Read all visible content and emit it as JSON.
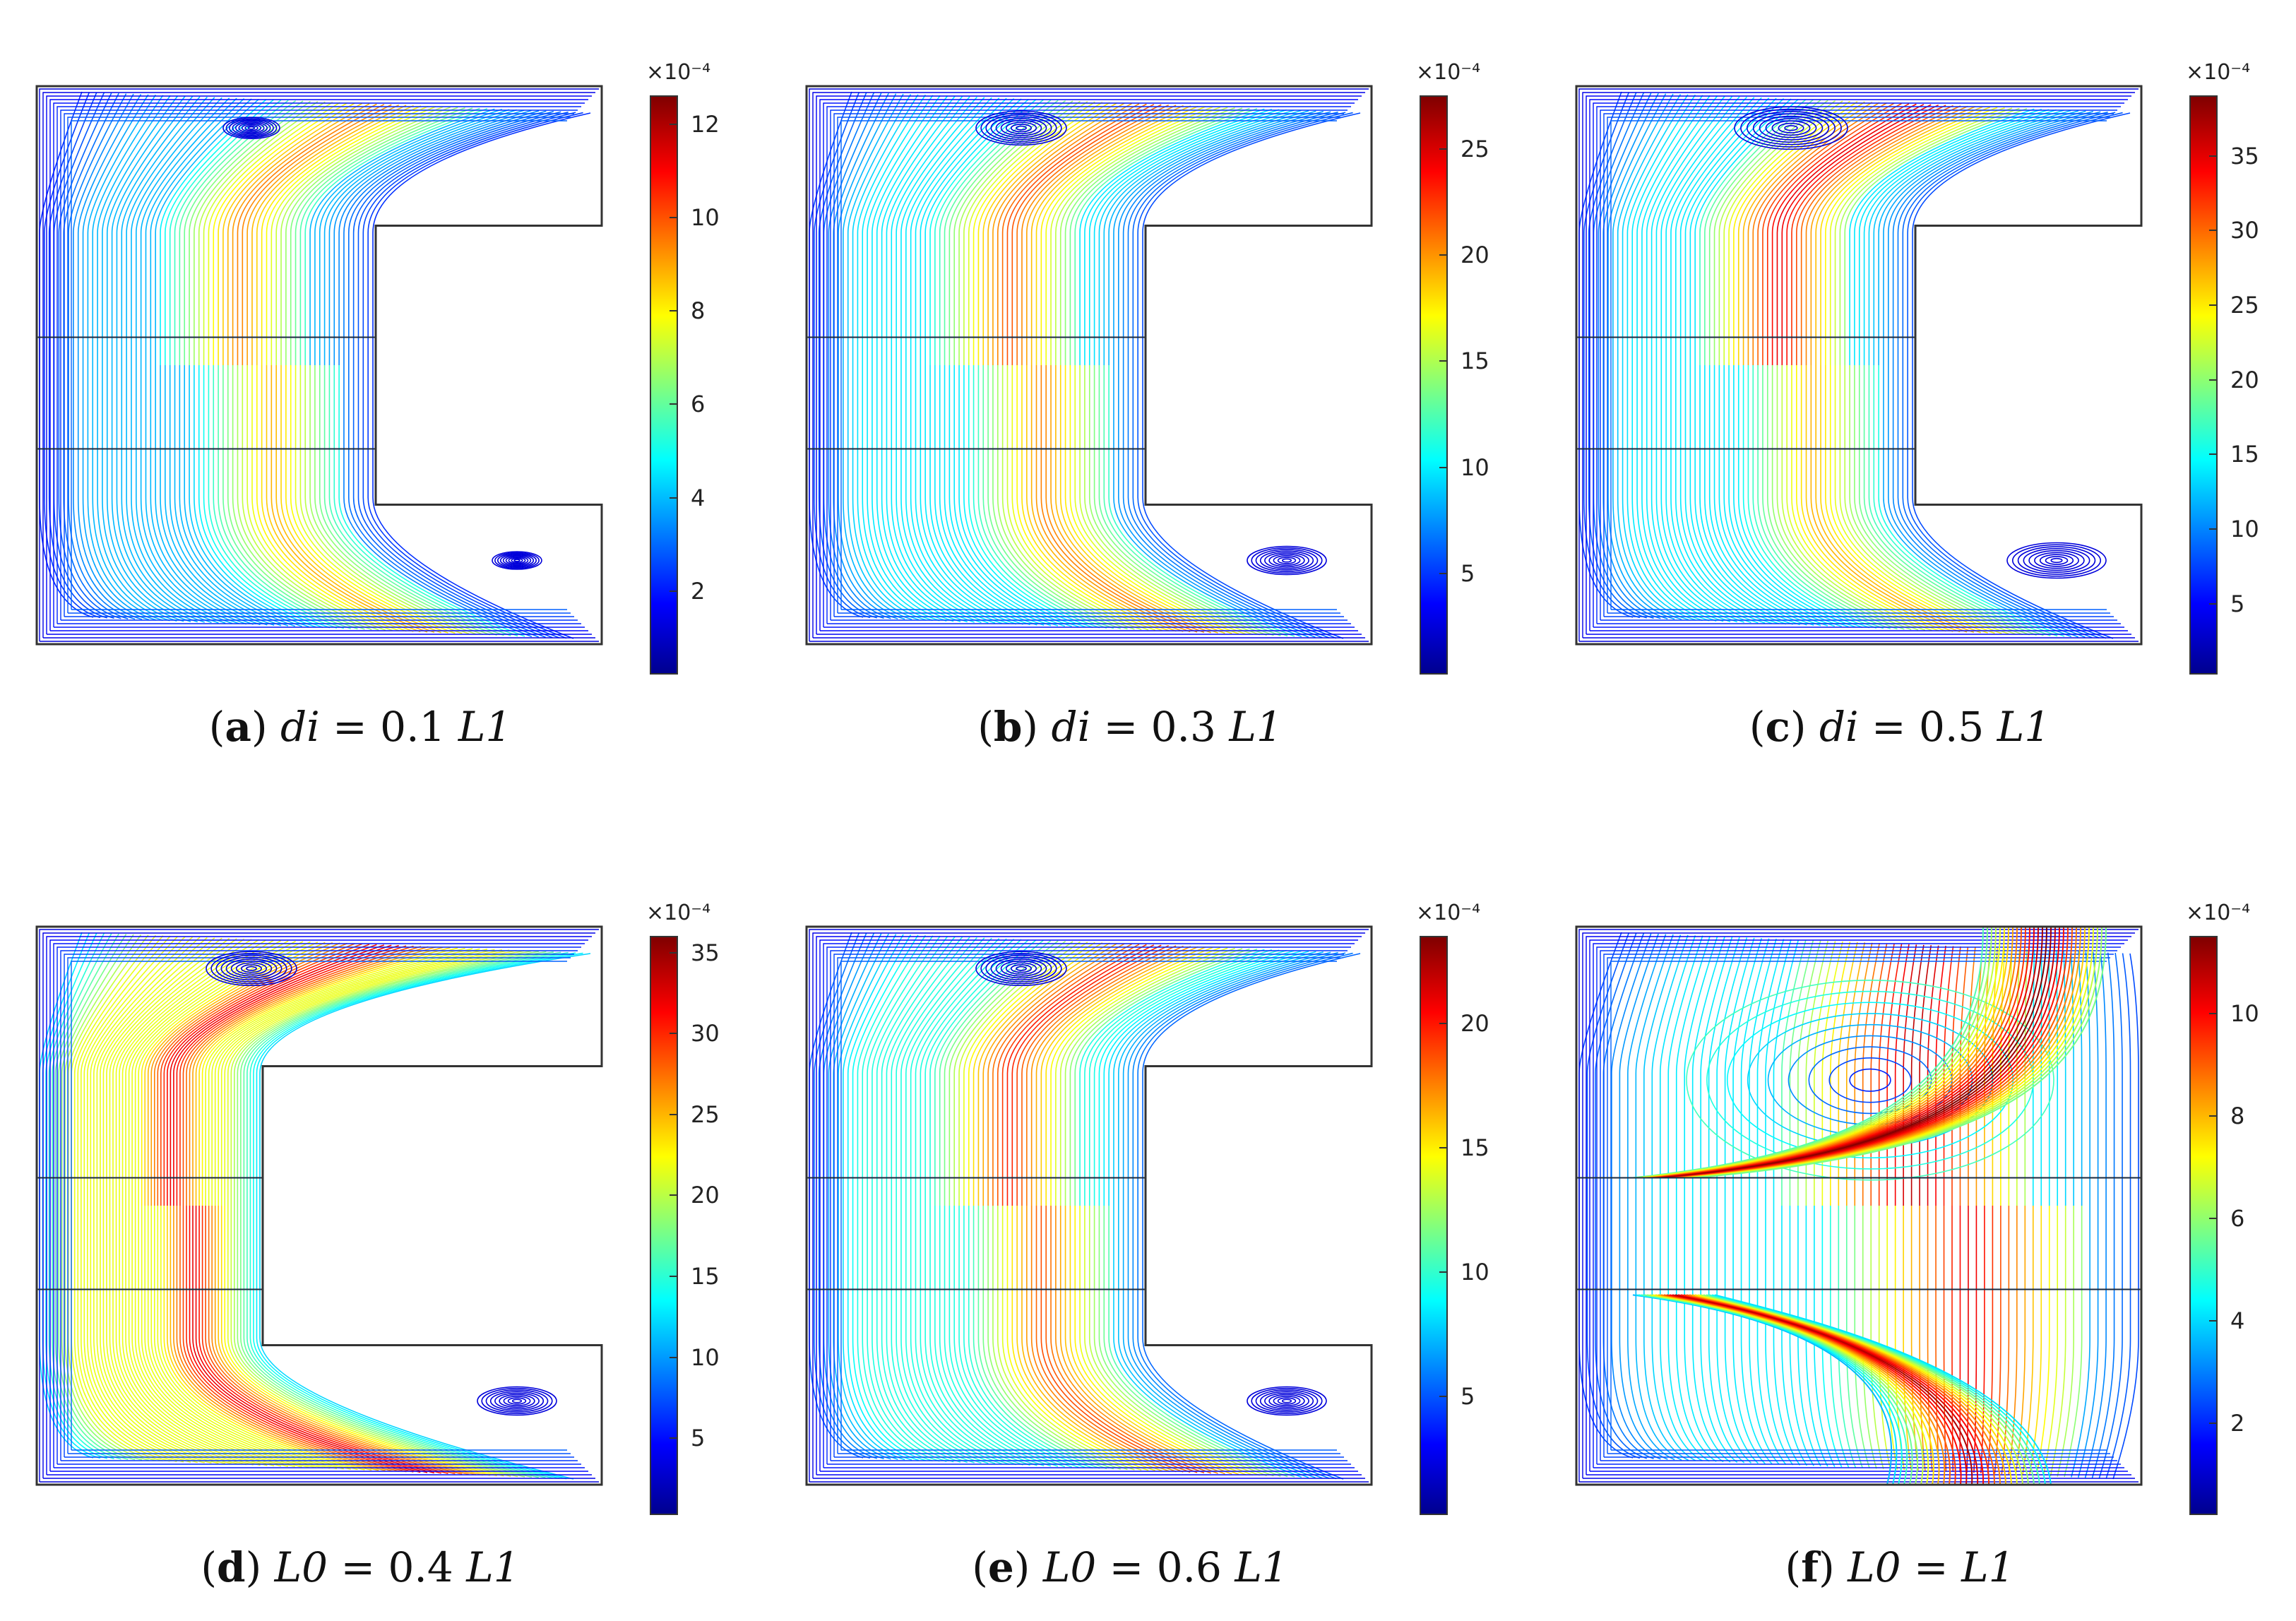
{
  "panels": [
    {
      "id": "a",
      "caption": {
        "letter": "a",
        "variable": "di",
        "op": " = 0.1 ",
        "unit": "L1"
      },
      "colorbar": {
        "exponent": "×10⁻⁴",
        "ticks": [
          "2",
          "4",
          "6",
          "8",
          "10",
          "12"
        ],
        "min": 0.2,
        "max": 12.6,
        "values": [
          2,
          4,
          6,
          8,
          10,
          12
        ]
      },
      "geometry": {
        "notch_depth": 0.4,
        "label": "di = 0.1 L1"
      },
      "flow": {
        "left_value_norm": 0.3,
        "hot_top": 0.75,
        "hot_bottom": 0.7,
        "vortex": "weak"
      }
    },
    {
      "id": "b",
      "caption": {
        "letter": "b",
        "variable": "di",
        "op": " = 0.3 ",
        "unit": "L1"
      },
      "colorbar": {
        "exponent": "×10⁻⁴",
        "ticks": [
          "5",
          "10",
          "15",
          "20",
          "25"
        ],
        "min": 0.2,
        "max": 27.5,
        "values": [
          5,
          10,
          15,
          20,
          25
        ]
      },
      "geometry": {
        "notch_depth": 0.4,
        "label": "di = 0.3 L1"
      },
      "flow": {
        "left_value_norm": 0.35,
        "hot_top": 0.8,
        "hot_bottom": 0.75,
        "vortex": "medium"
      }
    },
    {
      "id": "c",
      "caption": {
        "letter": "c",
        "variable": "di",
        "op": " = 0.5 ",
        "unit": "L1"
      },
      "colorbar": {
        "exponent": "×10⁻⁴",
        "ticks": [
          "5",
          "10",
          "15",
          "20",
          "25",
          "30",
          "35"
        ],
        "min": 0.2,
        "max": 39,
        "values": [
          5,
          10,
          15,
          20,
          25,
          30,
          35
        ]
      },
      "geometry": {
        "notch_depth": 0.4,
        "label": "di = 0.5 L1"
      },
      "flow": {
        "left_value_norm": 0.35,
        "hot_top": 0.9,
        "hot_bottom": 0.7,
        "vortex": "strong"
      }
    },
    {
      "id": "d",
      "caption": {
        "letter": "d",
        "variable": "L0",
        "op": " = 0.4 ",
        "unit": "L1"
      },
      "colorbar": {
        "exponent": "×10⁻⁴",
        "ticks": [
          "5",
          "10",
          "15",
          "20",
          "25",
          "30",
          "35"
        ],
        "min": 0.2,
        "max": 36,
        "values": [
          5,
          10,
          15,
          20,
          25,
          30,
          35
        ]
      },
      "geometry": {
        "notch_depth": 0.6,
        "label": "L0 = 0.4 L1"
      },
      "flow": {
        "left_value_norm": 0.6,
        "hot_top": 0.9,
        "hot_bottom": 0.9,
        "vortex": "medium"
      }
    },
    {
      "id": "e",
      "caption": {
        "letter": "e",
        "variable": "L0",
        "op": " = 0.6 ",
        "unit": "L1"
      },
      "colorbar": {
        "exponent": "×10⁻⁴",
        "ticks": [
          "5",
          "10",
          "15",
          "20"
        ],
        "min": 0.2,
        "max": 23.5,
        "values": [
          5,
          10,
          15,
          20
        ]
      },
      "geometry": {
        "notch_depth": 0.4,
        "label": "L0 = 0.6 L1"
      },
      "flow": {
        "left_value_norm": 0.4,
        "hot_top": 0.85,
        "hot_bottom": 0.8,
        "vortex": "medium"
      }
    },
    {
      "id": "f",
      "caption": {
        "letter": "f",
        "variable": "L0",
        "op": " = ",
        "unit": "L1"
      },
      "colorbar": {
        "exponent": "×10⁻⁴",
        "ticks": [
          "2",
          "4",
          "6",
          "8",
          "10"
        ],
        "min": 0.2,
        "max": 11.5,
        "values": [
          2,
          4,
          6,
          8,
          10
        ]
      },
      "geometry": {
        "notch_depth": 0.0,
        "label": "L0 = L1"
      },
      "flow": {
        "left_value_norm": 0.35,
        "hot_top": 0.95,
        "hot_bottom": 0.9,
        "vortex": "large"
      }
    }
  ],
  "colors": {
    "outline": "#333333",
    "interface": "#1a2a40"
  }
}
